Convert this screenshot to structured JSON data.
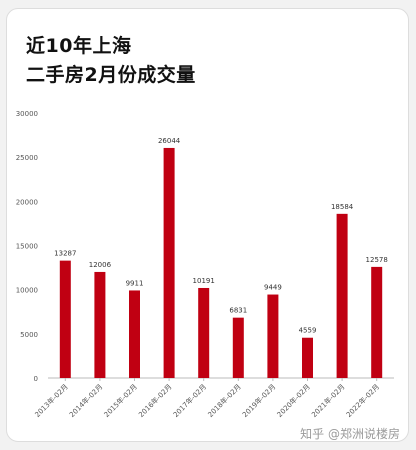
{
  "title_line1": "近10年上海",
  "title_line2": "二手房2月份成交量",
  "watermark": "知乎 @郑洲说楼房",
  "colors": {
    "bar": "#c00012",
    "axis": "#bbbbbb",
    "grid": "#eeeeee",
    "text": "#555555"
  },
  "chart_data": {
    "type": "bar",
    "categories": [
      "2013年-02月",
      "2014年-02月",
      "2015年-02月",
      "2016年-02月",
      "2017年-02月",
      "2018年-02月",
      "2019年-02月",
      "2020年-02月",
      "2021年-02月",
      "2022年-02月"
    ],
    "values": [
      13287,
      12006,
      9911,
      26044,
      10191,
      6831,
      9449,
      4559,
      18584,
      12578
    ],
    "ylim": [
      0,
      30000
    ],
    "yticks": [
      0,
      5000,
      10000,
      15000,
      20000,
      25000,
      30000
    ],
    "ytick_labels": [
      "0",
      "5000",
      "10000",
      "15000",
      "20000",
      "25000",
      "30000"
    ],
    "grid": false,
    "xlabel": "",
    "ylabel": ""
  }
}
